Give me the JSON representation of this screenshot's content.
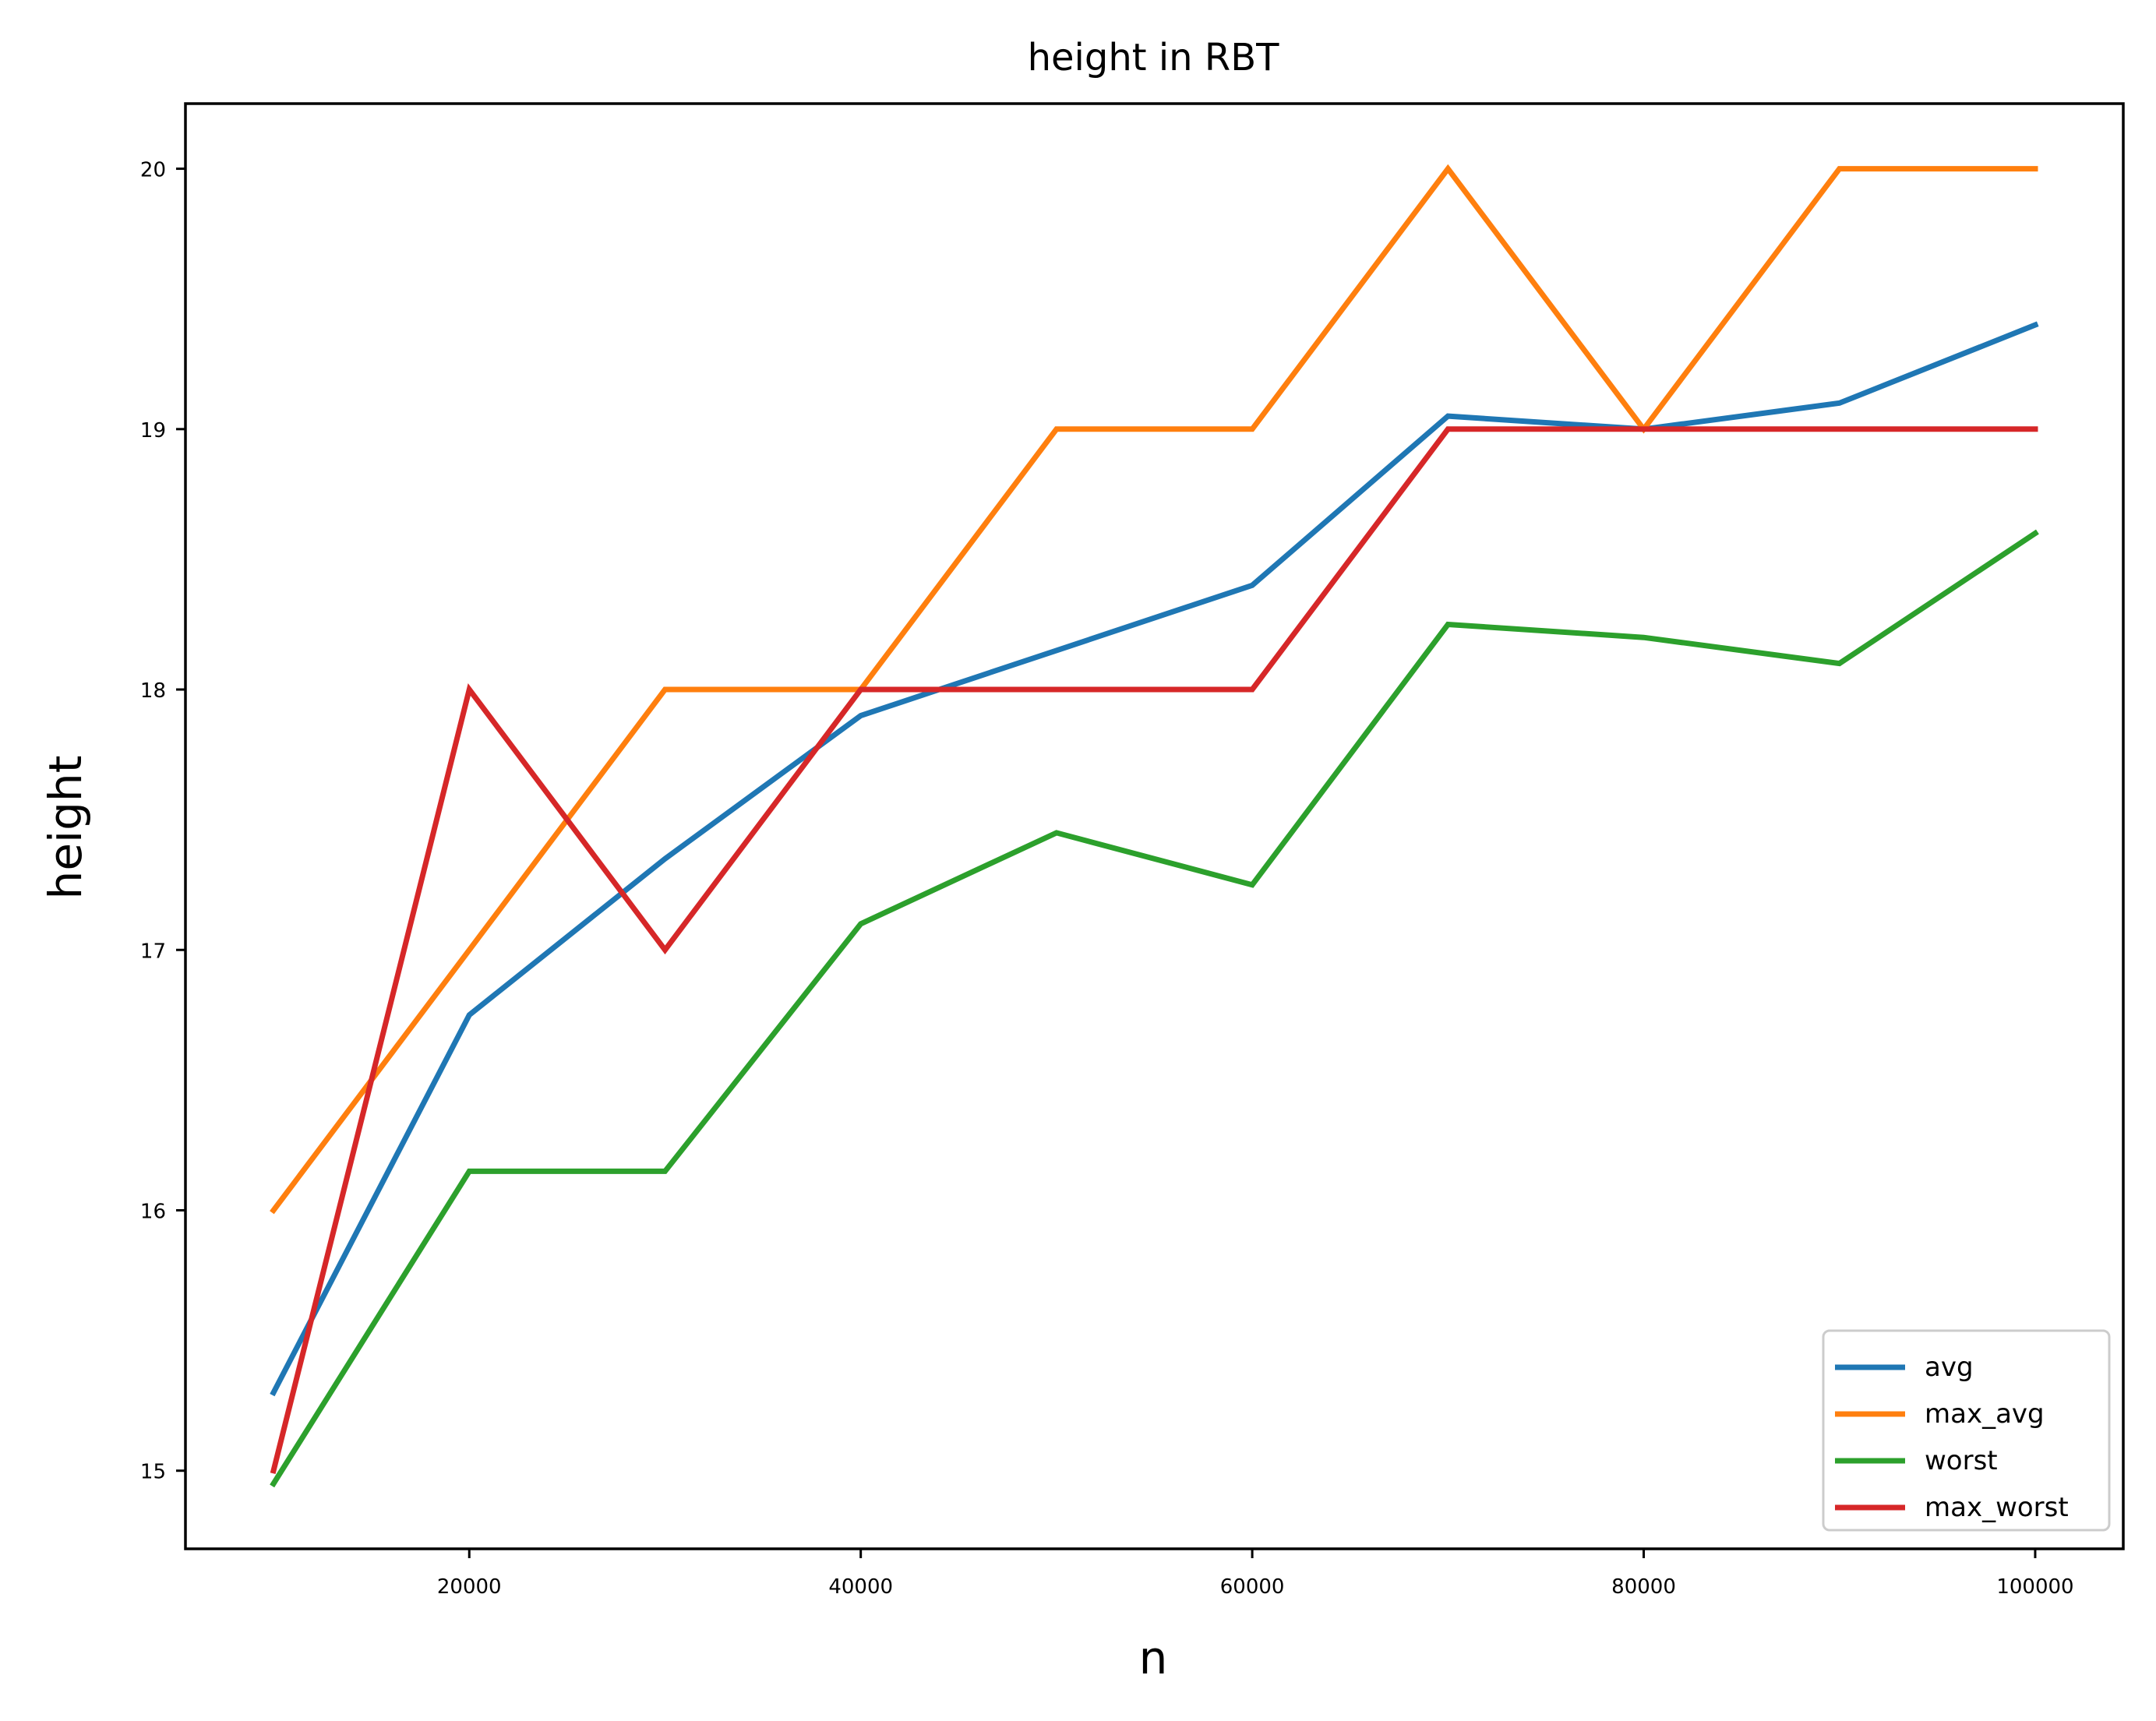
{
  "chart_data": {
    "type": "line",
    "title": "height in RBT",
    "xlabel": "n",
    "ylabel": "height",
    "xlim": [
      5500,
      104500
    ],
    "ylim": [
      14.7,
      20.25
    ],
    "x": [
      10000,
      20000,
      30000,
      40000,
      50000,
      60000,
      70000,
      80000,
      90000,
      100000
    ],
    "xticks": [
      20000,
      40000,
      60000,
      80000,
      100000
    ],
    "xtick_labels": [
      "20000",
      "40000",
      "60000",
      "80000",
      "100000"
    ],
    "yticks": [
      15,
      16,
      17,
      18,
      19,
      20
    ],
    "ytick_labels": [
      "15",
      "16",
      "17",
      "18",
      "19",
      "20"
    ],
    "grid": false,
    "legend_position": "lower-right",
    "series": [
      {
        "name": "avg",
        "color": "#1f77b4",
        "values": [
          15.3,
          16.75,
          17.35,
          17.9,
          18.15,
          18.4,
          19.05,
          19.0,
          19.1,
          19.4
        ]
      },
      {
        "name": "max_avg",
        "color": "#ff7f0e",
        "values": [
          16,
          17,
          18,
          18,
          19,
          19,
          20,
          19,
          20,
          20
        ]
      },
      {
        "name": "worst",
        "color": "#2ca02c",
        "values": [
          14.95,
          16.15,
          16.15,
          17.1,
          17.45,
          17.25,
          18.25,
          18.2,
          18.1,
          18.6
        ]
      },
      {
        "name": "max_worst",
        "color": "#d62728",
        "values": [
          15,
          18,
          17,
          18,
          18,
          18,
          19,
          19,
          19,
          19
        ]
      }
    ]
  }
}
